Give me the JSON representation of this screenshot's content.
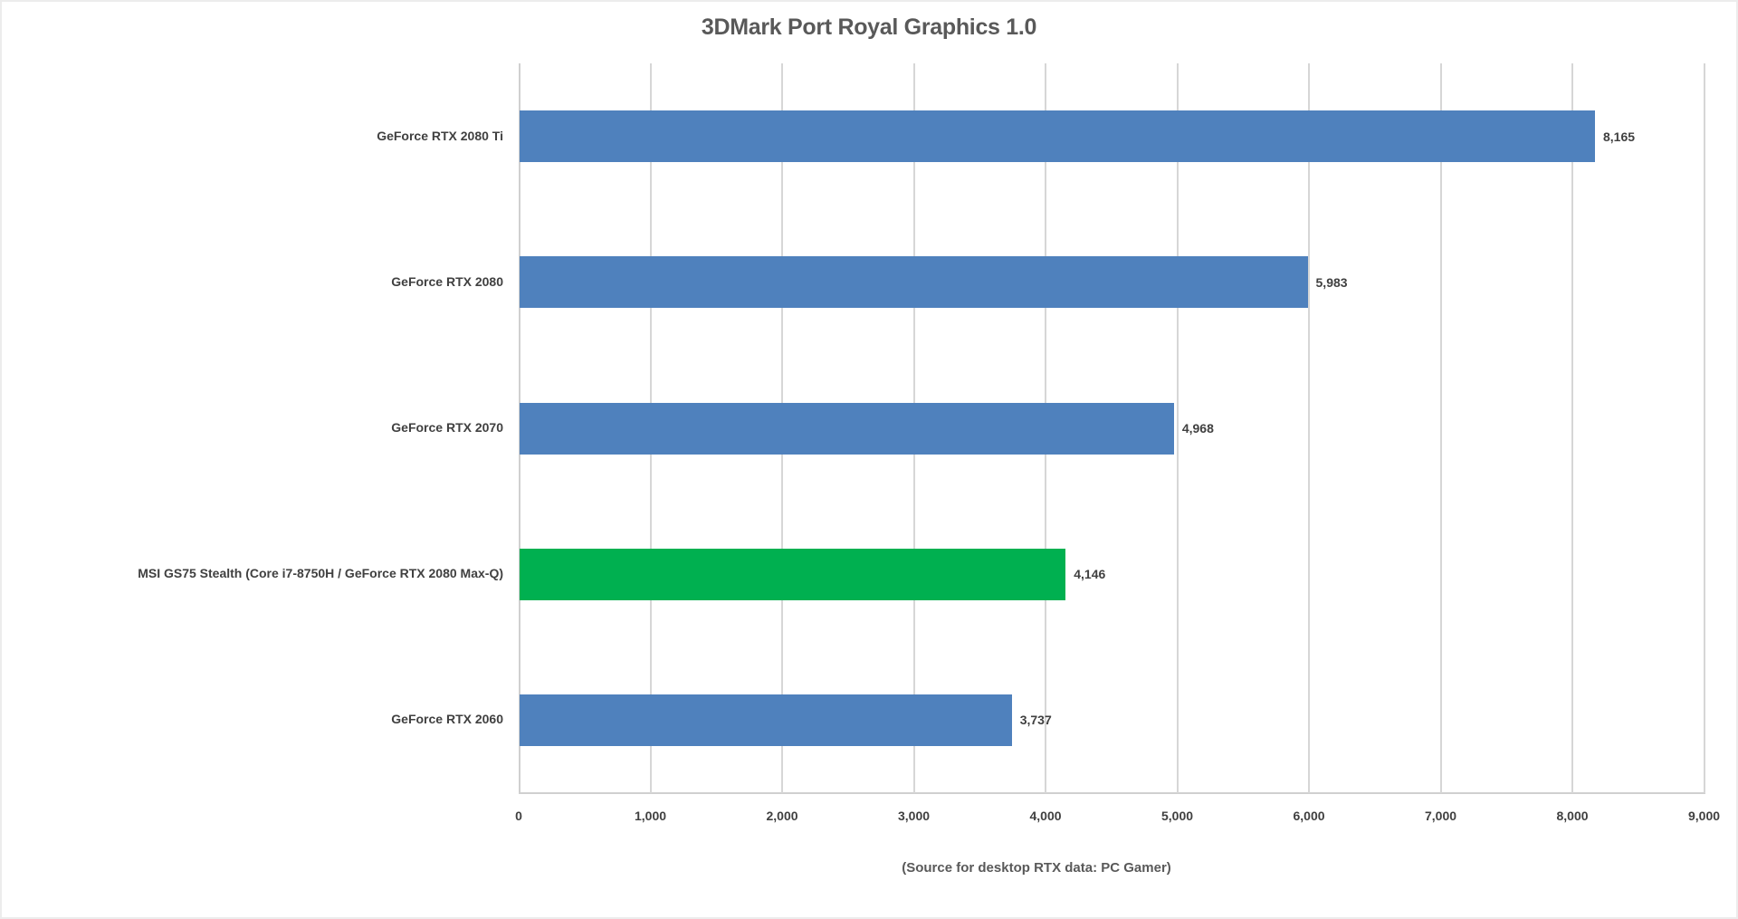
{
  "chart_data": {
    "type": "bar",
    "orientation": "horizontal",
    "title": "3DMark Port Royal Graphics 1.0",
    "xlabel": "(Source for desktop RTX data: PC Gamer)",
    "ylabel": "",
    "xlim": [
      0,
      9000
    ],
    "x_ticks": [
      "0",
      "1,000",
      "2,000",
      "3,000",
      "4,000",
      "5,000",
      "6,000",
      "7,000",
      "8,000",
      "9,000"
    ],
    "grid": true,
    "legend": null,
    "categories": [
      "GeForce RTX 2080 Ti",
      "GeForce RTX 2080",
      "GeForce RTX 2070",
      "MSI GS75 Stealth (Core i7-8750H / GeForce RTX 2080 Max-Q)",
      "GeForce RTX 2060"
    ],
    "values": [
      8165,
      5983,
      4968,
      4146,
      3737
    ],
    "value_labels": [
      "8,165",
      "5,983",
      "4,968",
      "4,146",
      "3,737"
    ],
    "bar_colors": [
      "#4F81BD",
      "#4F81BD",
      "#4F81BD",
      "#00B050",
      "#4F81BD"
    ],
    "highlighted_category": "MSI GS75 Stealth (Core i7-8750H / GeForce RTX 2080 Max-Q)"
  },
  "colors": {
    "bar_default": "#4F81BD",
    "bar_highlight": "#00B050",
    "gridline": "#D6D6D6",
    "text": "#404040",
    "title": "#595959"
  }
}
